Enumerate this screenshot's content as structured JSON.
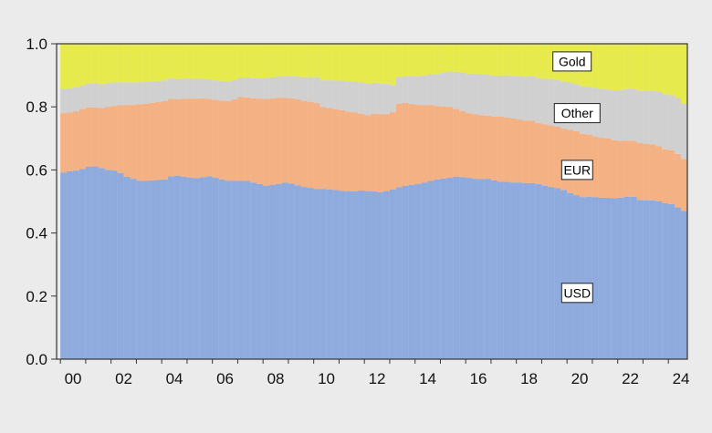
{
  "chart_data": {
    "type": "area",
    "stacked": true,
    "title": "",
    "xlabel": "",
    "ylabel": "",
    "x_tick_labels": [
      "00",
      "02",
      "04",
      "06",
      "08",
      "10",
      "12",
      "14",
      "16",
      "18",
      "20",
      "22",
      "24"
    ],
    "x_tick_years": [
      2000,
      2002,
      2004,
      2006,
      2008,
      2010,
      2012,
      2014,
      2016,
      2018,
      2020,
      2022,
      2024
    ],
    "y_tick_labels": [
      "0.0",
      "0.2",
      "0.4",
      "0.6",
      "0.8",
      "1.0"
    ],
    "ylim": [
      0,
      1
    ],
    "grid": false,
    "x": [
      2000.0,
      2000.25,
      2000.5,
      2000.75,
      2001.0,
      2001.25,
      2001.5,
      2001.75,
      2002.0,
      2002.25,
      2002.5,
      2002.75,
      2003.0,
      2003.25,
      2003.5,
      2003.75,
      2004.0,
      2004.25,
      2004.5,
      2004.75,
      2005.0,
      2005.25,
      2005.5,
      2005.75,
      2006.0,
      2006.25,
      2006.5,
      2006.75,
      2007.0,
      2007.25,
      2007.5,
      2007.75,
      2008.0,
      2008.25,
      2008.5,
      2008.75,
      2009.0,
      2009.25,
      2009.5,
      2009.75,
      2010.0,
      2010.25,
      2010.5,
      2010.75,
      2011.0,
      2011.25,
      2011.5,
      2011.75,
      2012.0,
      2012.25,
      2012.5,
      2012.75,
      2013.0,
      2013.25,
      2013.5,
      2013.75,
      2014.0,
      2014.25,
      2014.5,
      2014.75,
      2015.0,
      2015.25,
      2015.5,
      2015.75,
      2016.0,
      2016.25,
      2016.5,
      2016.75,
      2017.0,
      2017.25,
      2017.5,
      2017.75,
      2018.0,
      2018.25,
      2018.5,
      2018.75,
      2019.0,
      2019.25,
      2019.5,
      2019.75,
      2020.0,
      2020.25,
      2020.5,
      2020.75,
      2021.0,
      2021.25,
      2021.5,
      2021.75,
      2022.0,
      2022.25,
      2022.5,
      2022.75,
      2023.0,
      2023.25,
      2023.5,
      2023.75,
      2024.0,
      2024.25,
      2024.5
    ],
    "series": [
      {
        "name": "USD",
        "color": "#8faadc",
        "values": [
          0.592,
          0.596,
          0.598,
          0.603,
          0.61,
          0.612,
          0.606,
          0.6,
          0.598,
          0.59,
          0.578,
          0.572,
          0.566,
          0.565,
          0.567,
          0.568,
          0.57,
          0.58,
          0.582,
          0.578,
          0.576,
          0.574,
          0.577,
          0.58,
          0.575,
          0.57,
          0.566,
          0.566,
          0.566,
          0.565,
          0.56,
          0.555,
          0.55,
          0.552,
          0.556,
          0.56,
          0.557,
          0.551,
          0.546,
          0.543,
          0.54,
          0.54,
          0.538,
          0.536,
          0.534,
          0.533,
          0.532,
          0.535,
          0.533,
          0.532,
          0.529,
          0.533,
          0.538,
          0.545,
          0.55,
          0.553,
          0.556,
          0.56,
          0.565,
          0.57,
          0.573,
          0.575,
          0.578,
          0.577,
          0.575,
          0.572,
          0.571,
          0.572,
          0.567,
          0.563,
          0.562,
          0.56,
          0.56,
          0.558,
          0.558,
          0.555,
          0.55,
          0.546,
          0.542,
          0.536,
          0.527,
          0.52,
          0.513,
          0.515,
          0.513,
          0.512,
          0.512,
          0.51,
          0.512,
          0.515,
          0.515,
          0.505,
          0.503,
          0.503,
          0.5,
          0.495,
          0.492,
          0.481,
          0.47
        ]
      },
      {
        "name": "EUR",
        "color": "#f4b183",
        "values": [
          0.188,
          0.186,
          0.188,
          0.19,
          0.188,
          0.186,
          0.19,
          0.2,
          0.205,
          0.215,
          0.228,
          0.234,
          0.242,
          0.245,
          0.246,
          0.247,
          0.248,
          0.245,
          0.242,
          0.248,
          0.25,
          0.252,
          0.25,
          0.245,
          0.247,
          0.25,
          0.252,
          0.258,
          0.265,
          0.265,
          0.267,
          0.271,
          0.275,
          0.275,
          0.272,
          0.268,
          0.27,
          0.273,
          0.273,
          0.273,
          0.272,
          0.259,
          0.258,
          0.256,
          0.255,
          0.252,
          0.25,
          0.243,
          0.24,
          0.246,
          0.248,
          0.244,
          0.245,
          0.265,
          0.262,
          0.256,
          0.25,
          0.245,
          0.24,
          0.232,
          0.228,
          0.225,
          0.215,
          0.21,
          0.205,
          0.205,
          0.203,
          0.2,
          0.202,
          0.206,
          0.204,
          0.203,
          0.2,
          0.198,
          0.198,
          0.194,
          0.195,
          0.195,
          0.195,
          0.195,
          0.2,
          0.203,
          0.201,
          0.197,
          0.192,
          0.19,
          0.188,
          0.184,
          0.18,
          0.178,
          0.177,
          0.18,
          0.18,
          0.178,
          0.175,
          0.17,
          0.17,
          0.17,
          0.165
        ]
      },
      {
        "name": "Other",
        "color": "#d0d0d0",
        "values": [
          0.078,
          0.077,
          0.076,
          0.075,
          0.076,
          0.077,
          0.076,
          0.075,
          0.074,
          0.073,
          0.072,
          0.071,
          0.07,
          0.069,
          0.068,
          0.067,
          0.066,
          0.065,
          0.064,
          0.064,
          0.063,
          0.063,
          0.062,
          0.062,
          0.062,
          0.062,
          0.062,
          0.062,
          0.062,
          0.063,
          0.064,
          0.065,
          0.066,
          0.066,
          0.068,
          0.07,
          0.07,
          0.072,
          0.075,
          0.078,
          0.082,
          0.085,
          0.088,
          0.091,
          0.094,
          0.096,
          0.098,
          0.099,
          0.1,
          0.098,
          0.096,
          0.095,
          0.085,
          0.085,
          0.085,
          0.087,
          0.09,
          0.094,
          0.098,
          0.102,
          0.108,
          0.112,
          0.118,
          0.122,
          0.125,
          0.128,
          0.13,
          0.13,
          0.13,
          0.13,
          0.134,
          0.134,
          0.136,
          0.139,
          0.14,
          0.142,
          0.144,
          0.147,
          0.148,
          0.149,
          0.15,
          0.149,
          0.151,
          0.151,
          0.155,
          0.155,
          0.155,
          0.158,
          0.161,
          0.163,
          0.164,
          0.165,
          0.167,
          0.169,
          0.173,
          0.175,
          0.175,
          0.177,
          0.175
        ]
      },
      {
        "name": "Gold",
        "color": "#e6ea4c",
        "values": [
          0.142,
          0.141,
          0.138,
          0.132,
          0.126,
          0.125,
          0.128,
          0.125,
          0.123,
          0.122,
          0.122,
          0.123,
          0.122,
          0.121,
          0.119,
          0.118,
          0.116,
          0.11,
          0.112,
          0.11,
          0.111,
          0.111,
          0.111,
          0.113,
          0.116,
          0.118,
          0.12,
          0.114,
          0.107,
          0.107,
          0.109,
          0.109,
          0.109,
          0.107,
          0.104,
          0.102,
          0.103,
          0.104,
          0.106,
          0.106,
          0.106,
          0.116,
          0.116,
          0.117,
          0.117,
          0.119,
          0.12,
          0.123,
          0.127,
          0.124,
          0.127,
          0.128,
          0.132,
          0.105,
          0.103,
          0.104,
          0.104,
          0.101,
          0.097,
          0.096,
          0.091,
          0.088,
          0.089,
          0.091,
          0.095,
          0.095,
          0.096,
          0.098,
          0.101,
          0.101,
          0.1,
          0.103,
          0.104,
          0.105,
          0.104,
          0.109,
          0.111,
          0.112,
          0.115,
          0.12,
          0.123,
          0.128,
          0.135,
          0.137,
          0.14,
          0.143,
          0.145,
          0.148,
          0.147,
          0.144,
          0.144,
          0.15,
          0.15,
          0.15,
          0.152,
          0.16,
          0.163,
          0.172,
          0.19
        ]
      }
    ],
    "labels": [
      {
        "text": "Gold",
        "x": 2020.2,
        "y": 0.944
      },
      {
        "text": "Other",
        "x": 2020.4,
        "y": 0.78
      },
      {
        "text": "EUR",
        "x": 2020.4,
        "y": 0.6
      },
      {
        "text": "USD",
        "x": 2020.4,
        "y": 0.21
      }
    ]
  }
}
